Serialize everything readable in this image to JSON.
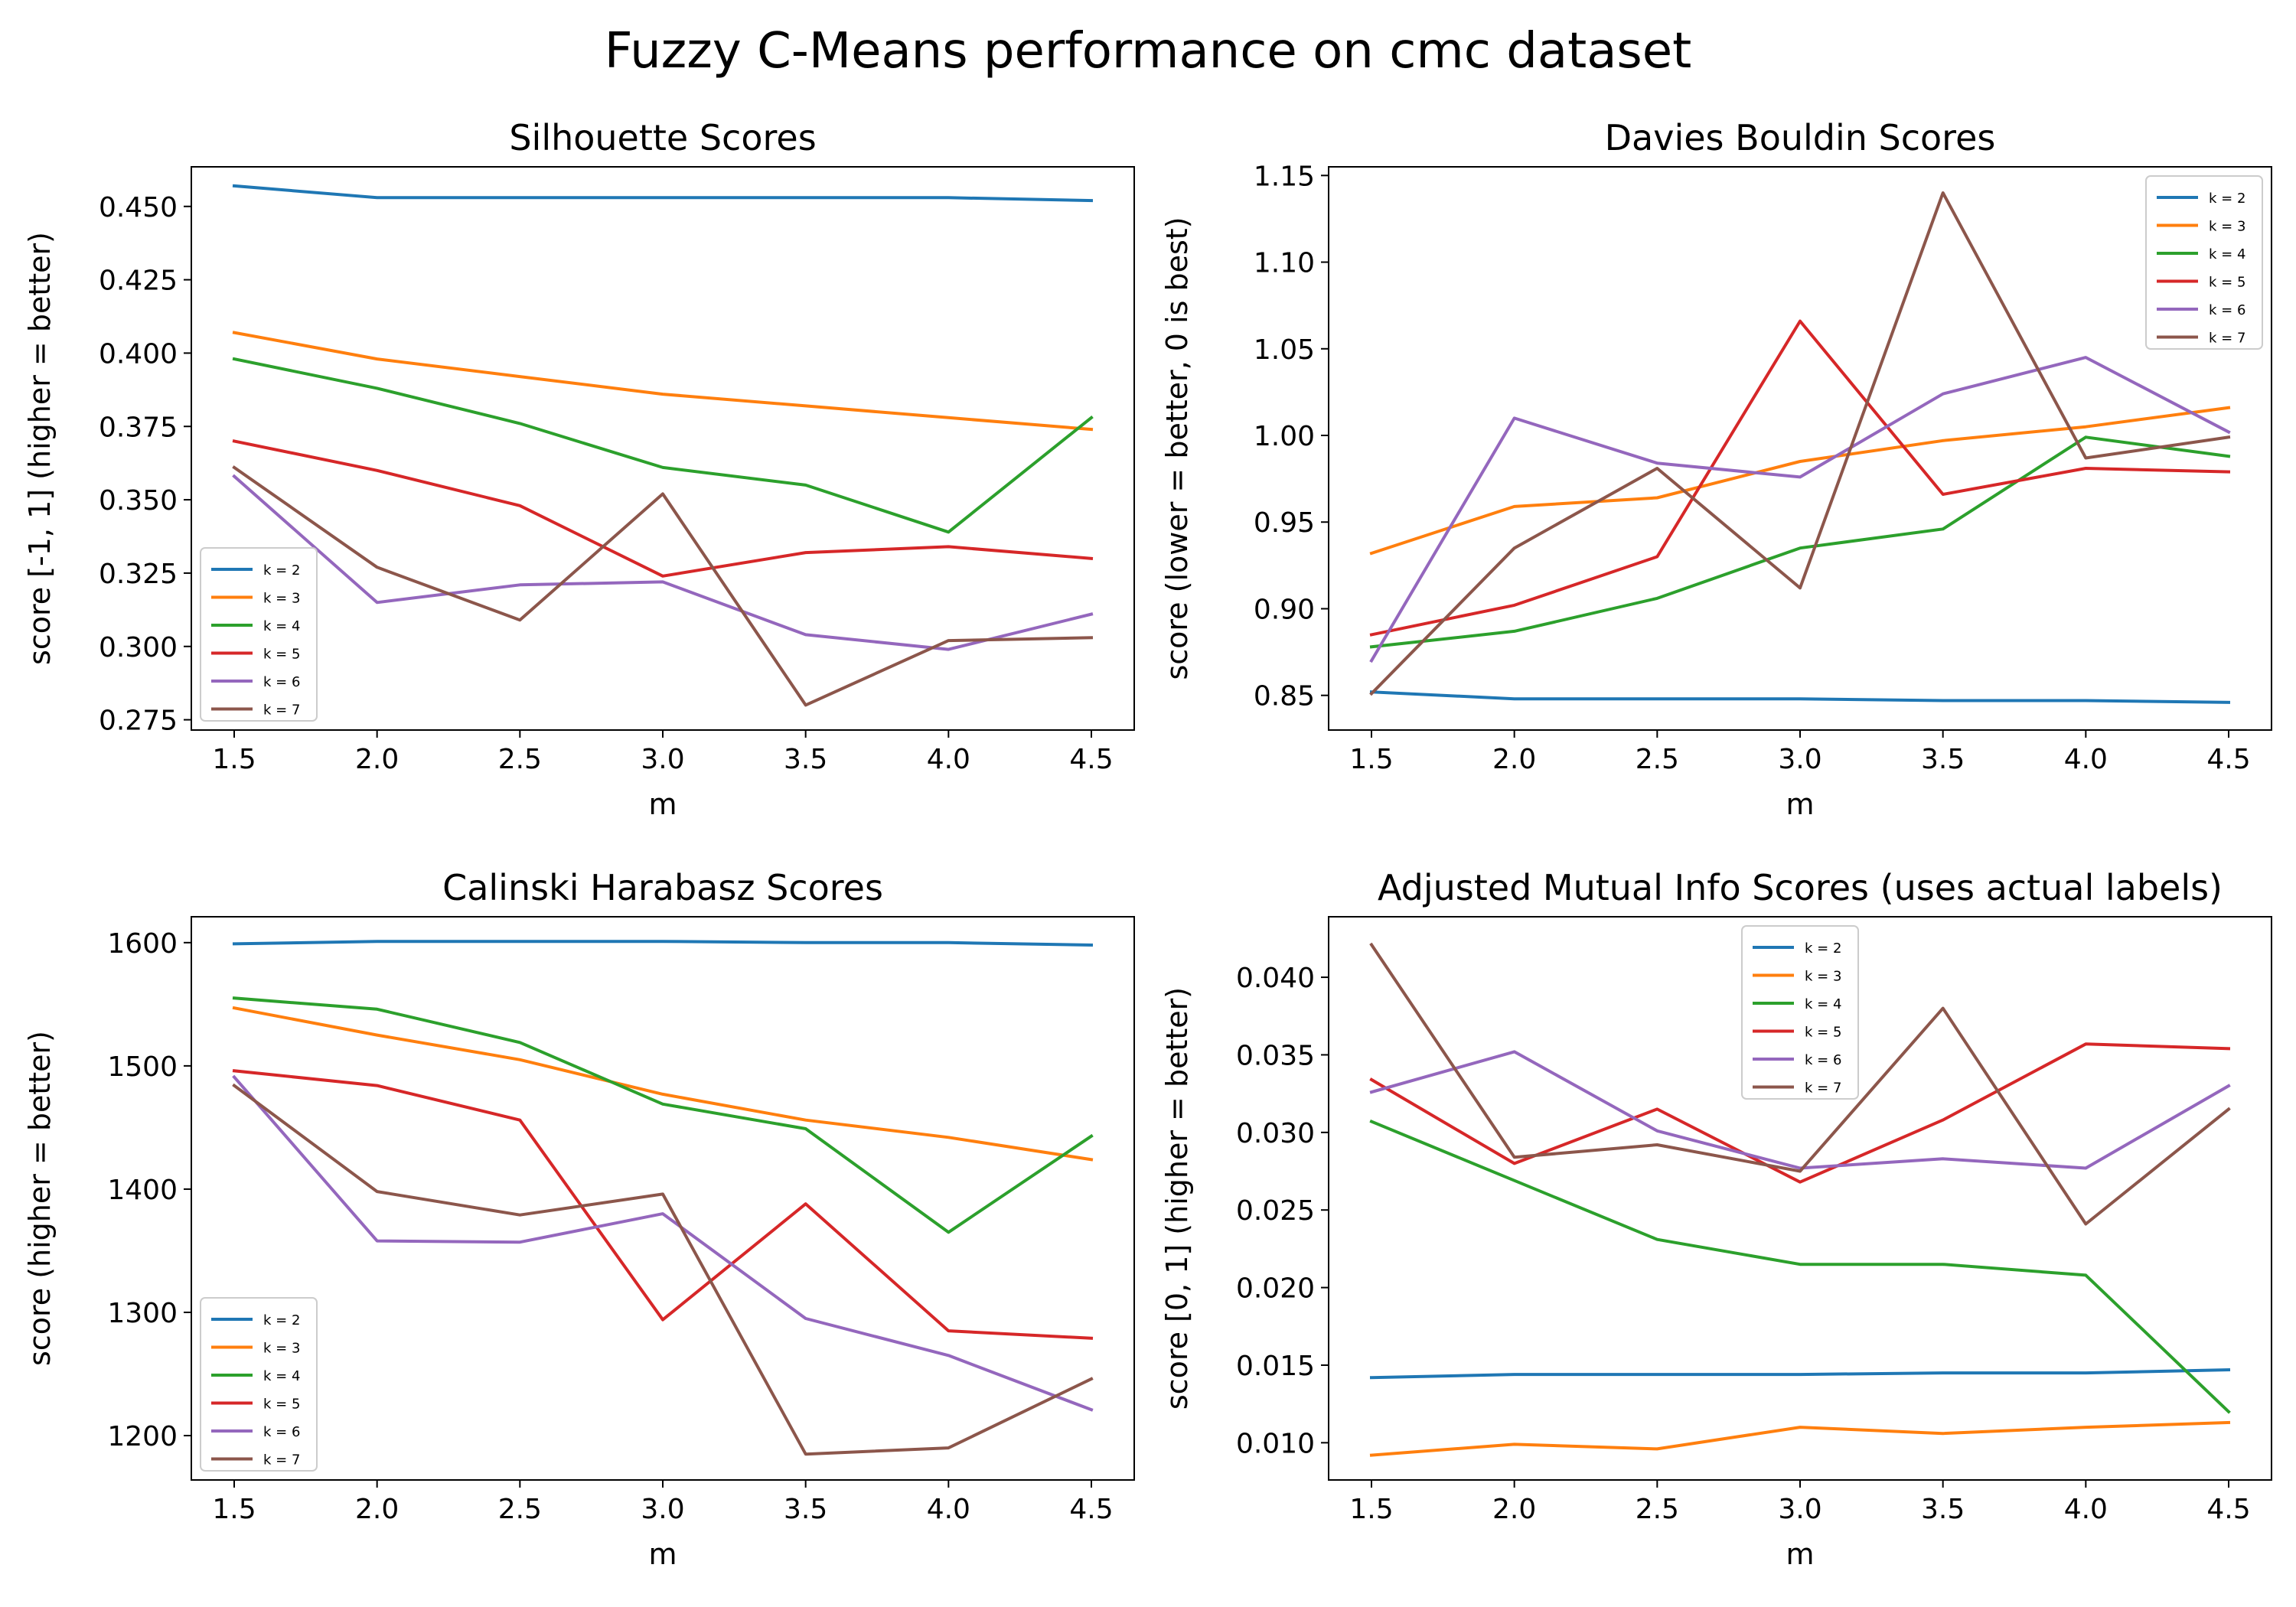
{
  "figure": {
    "title": "Fuzzy C-Means performance on cmc dataset"
  },
  "colors": {
    "k = 2": "#1f77b4",
    "k = 3": "#ff7f0e",
    "k = 4": "#2ca02c",
    "k = 5": "#d62728",
    "k = 6": "#9467bd",
    "k = 7": "#8c564b"
  },
  "chart_data": [
    {
      "type": "line",
      "title": "Silhouette Scores",
      "xlabel": "m",
      "ylabel": "score [-1, 1] (higher = better)",
      "x": [
        1.5,
        2.0,
        2.5,
        3.0,
        3.5,
        4.0,
        4.5
      ],
      "xlim": [
        1.35,
        4.65
      ],
      "ylim": [
        0.2715,
        0.4635
      ],
      "xticks": [
        "1.5",
        "2.0",
        "2.5",
        "3.0",
        "3.5",
        "4.0",
        "4.5"
      ],
      "yticks": [
        "0.275",
        "0.300",
        "0.325",
        "0.350",
        "0.375",
        "0.400",
        "0.425",
        "0.450"
      ],
      "legend": "lower-left",
      "series": [
        {
          "name": "k = 2",
          "values": [
            0.457,
            0.453,
            0.453,
            0.453,
            0.453,
            0.453,
            0.452
          ]
        },
        {
          "name": "k = 3",
          "values": [
            0.407,
            0.398,
            0.392,
            0.386,
            0.382,
            0.378,
            0.374
          ]
        },
        {
          "name": "k = 4",
          "values": [
            0.398,
            0.388,
            0.376,
            0.361,
            0.355,
            0.339,
            0.378
          ]
        },
        {
          "name": "k = 5",
          "values": [
            0.37,
            0.36,
            0.348,
            0.324,
            0.332,
            0.334,
            0.33
          ]
        },
        {
          "name": "k = 6",
          "values": [
            0.358,
            0.315,
            0.321,
            0.322,
            0.304,
            0.299,
            0.311
          ]
        },
        {
          "name": "k = 7",
          "values": [
            0.361,
            0.327,
            0.309,
            0.352,
            0.28,
            0.302,
            0.303
          ]
        }
      ]
    },
    {
      "type": "line",
      "title": "Davies Bouldin Scores",
      "xlabel": "m",
      "ylabel": "score (lower = better, 0 is best)",
      "x": [
        1.5,
        2.0,
        2.5,
        3.0,
        3.5,
        4.0,
        4.5
      ],
      "xlim": [
        1.35,
        4.65
      ],
      "ylim": [
        0.83,
        1.155
      ],
      "xticks": [
        "1.5",
        "2.0",
        "2.5",
        "3.0",
        "3.5",
        "4.0",
        "4.5"
      ],
      "yticks": [
        "0.85",
        "0.90",
        "0.95",
        "1.00",
        "1.05",
        "1.10",
        "1.15"
      ],
      "legend": "upper-right",
      "series": [
        {
          "name": "k = 2",
          "values": [
            0.852,
            0.848,
            0.848,
            0.848,
            0.847,
            0.847,
            0.846
          ]
        },
        {
          "name": "k = 3",
          "values": [
            0.932,
            0.959,
            0.964,
            0.985,
            0.997,
            1.005,
            1.016
          ]
        },
        {
          "name": "k = 4",
          "values": [
            0.878,
            0.887,
            0.906,
            0.935,
            0.946,
            0.999,
            0.988
          ]
        },
        {
          "name": "k = 5",
          "values": [
            0.885,
            0.902,
            0.93,
            1.066,
            0.966,
            0.981,
            0.979
          ]
        },
        {
          "name": "k = 6",
          "values": [
            0.87,
            1.01,
            0.984,
            0.976,
            1.024,
            1.045,
            1.002
          ]
        },
        {
          "name": "k = 7",
          "values": [
            0.851,
            0.935,
            0.981,
            0.912,
            1.14,
            0.987,
            0.999
          ]
        }
      ]
    },
    {
      "type": "line",
      "title": "Calinski Harabasz Scores",
      "xlabel": "m",
      "ylabel": "score (higher = better)",
      "x": [
        1.5,
        2.0,
        2.5,
        3.0,
        3.5,
        4.0,
        4.5
      ],
      "xlim": [
        1.35,
        4.65
      ],
      "ylim": [
        1164,
        1621
      ],
      "xticks": [
        "1.5",
        "2.0",
        "2.5",
        "3.0",
        "3.5",
        "4.0",
        "4.5"
      ],
      "yticks": [
        "1200",
        "1300",
        "1400",
        "1500",
        "1600"
      ],
      "legend": "lower-left",
      "series": [
        {
          "name": "k = 2",
          "values": [
            1599,
            1601,
            1601,
            1601,
            1600,
            1600,
            1598
          ]
        },
        {
          "name": "k = 3",
          "values": [
            1547,
            1525,
            1505,
            1477,
            1456,
            1442,
            1424
          ]
        },
        {
          "name": "k = 4",
          "values": [
            1555,
            1546,
            1519,
            1469,
            1449,
            1365,
            1443
          ]
        },
        {
          "name": "k = 5",
          "values": [
            1496,
            1484,
            1456,
            1294,
            1388,
            1285,
            1279
          ]
        },
        {
          "name": "k = 6",
          "values": [
            1491,
            1358,
            1357,
            1380,
            1295,
            1265,
            1221
          ]
        },
        {
          "name": "k = 7",
          "values": [
            1484,
            1398,
            1379,
            1396,
            1185,
            1190,
            1246
          ]
        }
      ]
    },
    {
      "type": "line",
      "title": "Adjusted Mutual Info Scores (uses actual labels)",
      "xlabel": "m",
      "ylabel": "score [0, 1] (higher = better)",
      "x": [
        1.5,
        2.0,
        2.5,
        3.0,
        3.5,
        4.0,
        4.5
      ],
      "xlim": [
        1.35,
        4.65
      ],
      "ylim": [
        0.0076,
        0.0439
      ],
      "xticks": [
        "1.5",
        "2.0",
        "2.5",
        "3.0",
        "3.5",
        "4.0",
        "4.5"
      ],
      "yticks": [
        "0.010",
        "0.015",
        "0.020",
        "0.025",
        "0.030",
        "0.035",
        "0.040"
      ],
      "legend": "upper-center",
      "series": [
        {
          "name": "k = 2",
          "values": [
            0.0142,
            0.0144,
            0.0144,
            0.0144,
            0.0145,
            0.0145,
            0.0147
          ]
        },
        {
          "name": "k = 3",
          "values": [
            0.0092,
            0.0099,
            0.0096,
            0.011,
            0.0106,
            0.011,
            0.0113
          ]
        },
        {
          "name": "k = 4",
          "values": [
            0.0307,
            0.0269,
            0.0231,
            0.0215,
            0.0215,
            0.0208,
            0.012
          ]
        },
        {
          "name": "k = 5",
          "values": [
            0.0334,
            0.028,
            0.0315,
            0.0268,
            0.0308,
            0.0357,
            0.0354
          ]
        },
        {
          "name": "k = 6",
          "values": [
            0.0326,
            0.0352,
            0.0301,
            0.0277,
            0.0283,
            0.0277,
            0.033
          ]
        },
        {
          "name": "k = 7",
          "values": [
            0.0421,
            0.0284,
            0.0292,
            0.0275,
            0.038,
            0.0241,
            0.0315
          ]
        }
      ]
    }
  ]
}
